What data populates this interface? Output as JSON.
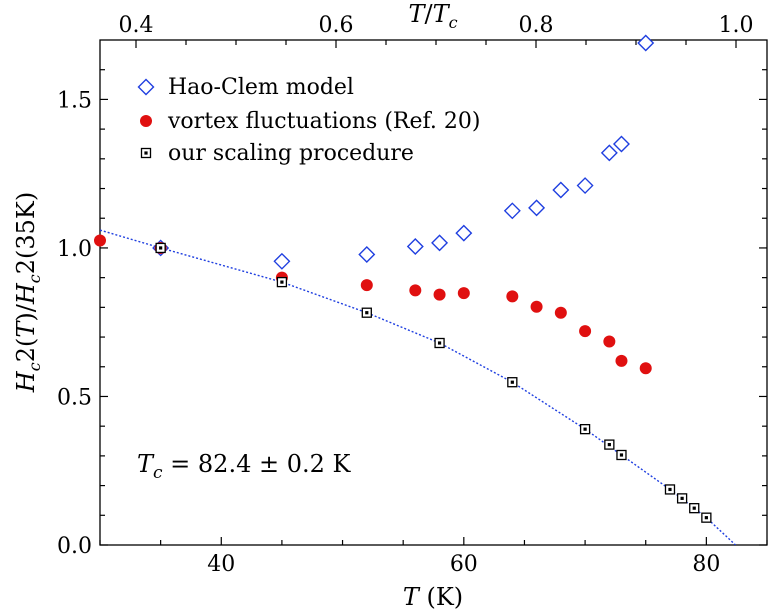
{
  "chart_data": {
    "type": "scatter",
    "xlabel": {
      "italic": "T",
      "rest": " (K)"
    },
    "top_xlabel": {
      "italic": "T",
      "mid": "/",
      "italic2": "T",
      "sub": "c"
    },
    "ylabel": "Hc2(T)/Hc2(35K)",
    "x_ticks": [
      "40",
      "60",
      "80"
    ],
    "y_ticks": [
      "0.0",
      "0.5",
      "1.0",
      "1.5"
    ],
    "top_ticks": [
      "0.4",
      "0.6",
      "0.8",
      "1.0"
    ],
    "xlim": [
      30,
      85
    ],
    "ylim": [
      0,
      1.7
    ],
    "top_xlim": [
      0.364,
      1.031
    ],
    "grid": false,
    "legend": "top-left",
    "annotation": {
      "italic": "T",
      "sub": "c",
      "rest": " = 82.4 ± 0.2 K"
    },
    "series": [
      {
        "name": "Hao-Clem model",
        "marker": "diamond-open",
        "color": "#1f3fe0",
        "points": [
          [
            35,
            1.0
          ],
          [
            45,
            0.955
          ],
          [
            52,
            0.978
          ],
          [
            56,
            1.005
          ],
          [
            58,
            1.017
          ],
          [
            60,
            1.05
          ],
          [
            64,
            1.125
          ],
          [
            66,
            1.135
          ],
          [
            68,
            1.195
          ],
          [
            70,
            1.21
          ],
          [
            72,
            1.32
          ],
          [
            73,
            1.35
          ],
          [
            75,
            1.69
          ]
        ]
      },
      {
        "name": "vortex fluctuations (Ref. 20)",
        "marker": "circle-filled",
        "color": "#e01010",
        "points": [
          [
            30,
            1.025
          ],
          [
            35,
            1.0
          ],
          [
            45,
            0.9
          ],
          [
            52,
            0.875
          ],
          [
            56,
            0.857
          ],
          [
            58,
            0.843
          ],
          [
            60,
            0.848
          ],
          [
            64,
            0.837
          ],
          [
            66,
            0.802
          ],
          [
            68,
            0.782
          ],
          [
            70,
            0.72
          ],
          [
            72,
            0.685
          ],
          [
            73,
            0.62
          ],
          [
            75,
            0.595
          ]
        ]
      },
      {
        "name": "our scaling procedure",
        "marker": "square-dot",
        "color": "#000000",
        "points": [
          [
            35,
            1.0
          ],
          [
            45,
            0.885
          ],
          [
            52,
            0.782
          ],
          [
            58,
            0.68
          ],
          [
            64,
            0.548
          ],
          [
            70,
            0.39
          ],
          [
            72,
            0.338
          ],
          [
            73,
            0.303
          ],
          [
            77,
            0.187
          ],
          [
            78,
            0.157
          ],
          [
            79,
            0.124
          ],
          [
            80,
            0.092
          ]
        ]
      }
    ],
    "fit_line": {
      "color": "#1f3fe0",
      "style": "dotted",
      "points": [
        [
          30,
          1.06
        ],
        [
          35,
          1.0
        ],
        [
          45,
          0.885
        ],
        [
          52,
          0.782
        ],
        [
          58,
          0.68
        ],
        [
          64,
          0.548
        ],
        [
          70,
          0.39
        ],
        [
          73,
          0.303
        ],
        [
          77,
          0.187
        ],
        [
          80,
          0.092
        ],
        [
          82.4,
          0.0
        ]
      ]
    }
  }
}
